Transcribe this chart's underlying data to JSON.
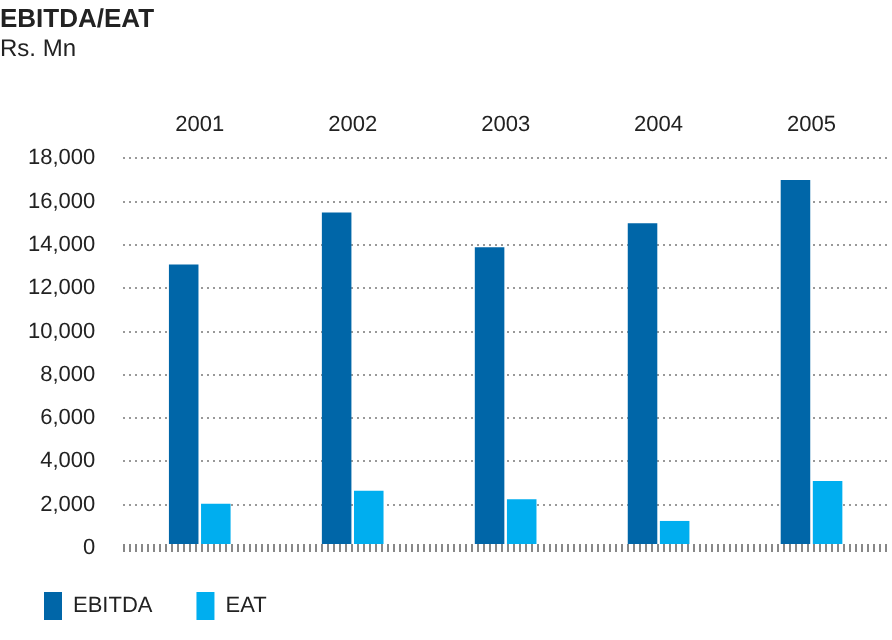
{
  "chart_data": {
    "type": "bar",
    "title": "EBITDA/EAT",
    "subtitle": "Rs. Mn",
    "categories": [
      "2001",
      "2002",
      "2003",
      "2004",
      "2005"
    ],
    "series": [
      {
        "name": "EBITDA",
        "color": "#0066a8",
        "values": [
          13100,
          15500,
          13900,
          15000,
          17000
        ]
      },
      {
        "name": "EAT",
        "color": "#00aeef",
        "values": [
          2050,
          2650,
          2250,
          1250,
          3100
        ]
      }
    ],
    "ylim": [
      0,
      18000
    ],
    "yticks": [
      {
        "value": 0,
        "label": "0"
      },
      {
        "value": 2000,
        "label": "2,000"
      },
      {
        "value": 4000,
        "label": "4,000"
      },
      {
        "value": 6000,
        "label": "6,000"
      },
      {
        "value": 8000,
        "label": "8,000"
      },
      {
        "value": 10000,
        "label": "10,000"
      },
      {
        "value": 12000,
        "label": "12,000"
      },
      {
        "value": 14000,
        "label": "14,000"
      },
      {
        "value": 16000,
        "label": "16,000"
      },
      {
        "value": 18000,
        "label": "18,000"
      }
    ],
    "grid": "y",
    "legend": "bottom left"
  }
}
